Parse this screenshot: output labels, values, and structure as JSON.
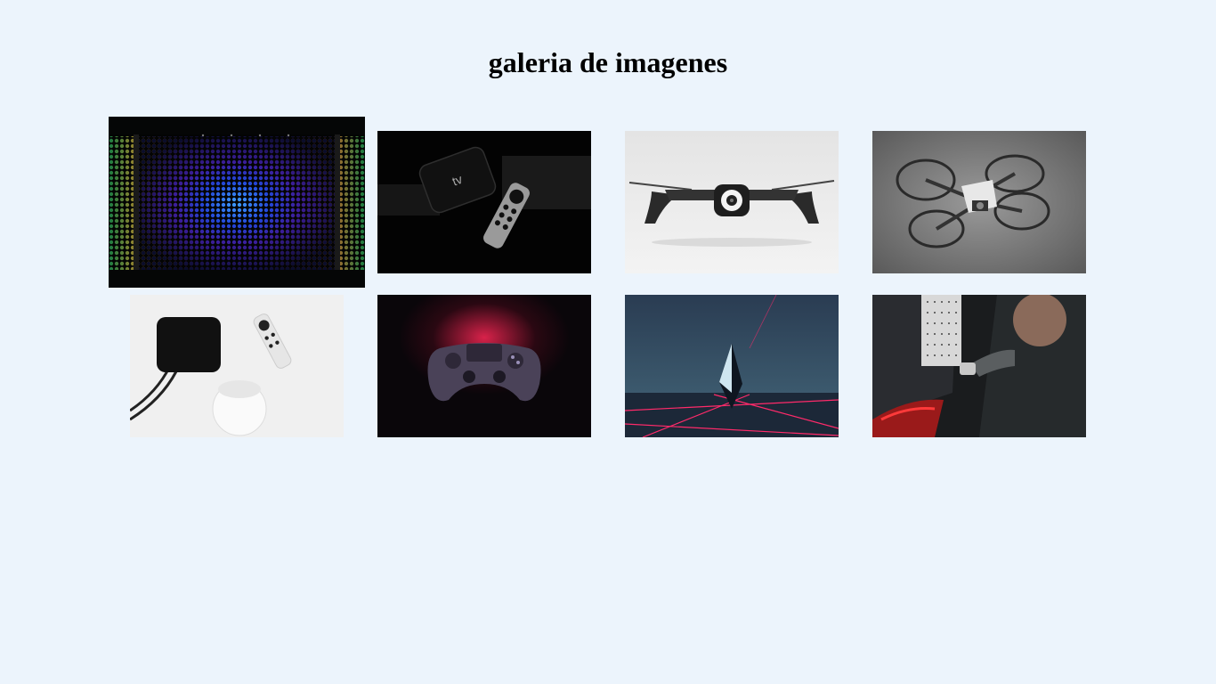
{
  "page": {
    "title": "galeria de imagenes",
    "background_color": "#ecf4fc"
  },
  "gallery": {
    "images": [
      {
        "subject": "speaker-led-grille",
        "zoomed": true
      },
      {
        "subject": "tv-box-with-remote-dark",
        "zoomed": false
      },
      {
        "subject": "drone-white-background",
        "zoomed": false
      },
      {
        "subject": "mini-drone-gray-background",
        "zoomed": false
      },
      {
        "subject": "tv-box-remote-smart-speaker-white",
        "zoomed": false
      },
      {
        "subject": "game-controller-dark",
        "zoomed": false
      },
      {
        "subject": "crystal-pyramid-neon-lines",
        "zoomed": false
      },
      {
        "subject": "person-charging-car",
        "zoomed": false
      }
    ]
  }
}
